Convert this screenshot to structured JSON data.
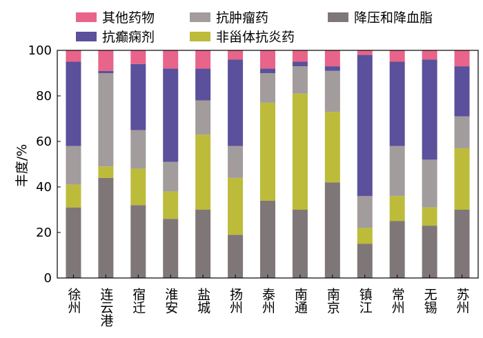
{
  "chart_data": {
    "type": "bar",
    "stacked": true,
    "title": "",
    "xlabel": "",
    "ylabel": "丰度/%",
    "ylim": [
      0,
      100
    ],
    "yticks": [
      0,
      20,
      40,
      60,
      80,
      100
    ],
    "grid": false,
    "legend_position": "top",
    "categories": [
      "徐州",
      "连云港",
      "宿迁",
      "淮安",
      "盐城",
      "扬州",
      "泰州",
      "南通",
      "南京",
      "镇江",
      "常州",
      "无锡",
      "苏州"
    ],
    "series": [
      {
        "name": "降压和降血脂",
        "color": "#7f7777",
        "values": [
          31,
          44,
          32,
          26,
          30,
          19,
          34,
          30,
          42,
          15,
          25,
          23,
          30
        ]
      },
      {
        "name": "非甾体抗炎药",
        "color": "#bdbb3a",
        "values": [
          10,
          5,
          16,
          12,
          33,
          25,
          43,
          51,
          31,
          7,
          11,
          8,
          27
        ]
      },
      {
        "name": "抗肿瘤药",
        "color": "#a39c9c",
        "values": [
          17,
          41,
          17,
          13,
          15,
          14,
          13,
          12,
          18,
          14,
          22,
          21,
          14
        ]
      },
      {
        "name": "抗癫痫剂",
        "color": "#5a509b",
        "values": [
          37,
          1,
          29,
          41,
          14,
          38,
          2,
          2,
          2,
          62,
          37,
          44,
          22
        ]
      },
      {
        "name": "其他药物",
        "color": "#e8648a",
        "values": [
          5,
          9,
          6,
          8,
          8,
          4,
          8,
          5,
          7,
          2,
          5,
          4,
          7
        ]
      }
    ],
    "legend_order": [
      "其他药物",
      "抗肿瘤药",
      "降压和降血脂",
      "抗癫痫剂",
      "非甾体抗炎药"
    ]
  }
}
